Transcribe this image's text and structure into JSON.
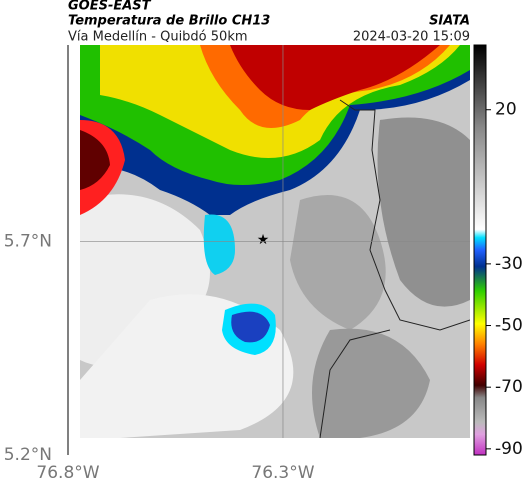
{
  "chart_data": {
    "type": "map",
    "title": "GOES-EAST",
    "subtitle": "Temperatura de Brillo CH13",
    "caption": "Vía Medellín - Quibdó 50km",
    "source": "SIATA",
    "timestamp": "2024-03-20 15:09",
    "xlim": [
      -76.8,
      -75.865
    ],
    "ylim": [
      5.2,
      6.16
    ],
    "xticks": [
      {
        "value": -76.8,
        "label": "76.8°W"
      },
      {
        "value": -76.3,
        "label": "76.3°W"
      }
    ],
    "yticks": [
      {
        "value": 5.2,
        "label": "5.2°N"
      },
      {
        "value": 5.7,
        "label": "5.7°N"
      }
    ],
    "grid": true,
    "colorbar": {
      "lim": [
        -92,
        41
      ],
      "ticks": [
        20,
        -30,
        -50,
        -70,
        -90
      ]
    }
  }
}
